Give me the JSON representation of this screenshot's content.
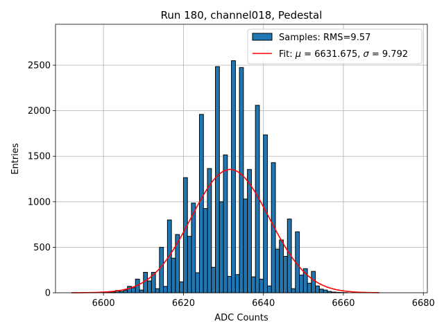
{
  "chart_data": {
    "type": "bar",
    "title": "Run 180, channel018, Pedestal",
    "xlabel": "ADC Counts",
    "ylabel": "Entries",
    "xlim": [
      6588,
      6681
    ],
    "ylim": [
      0,
      2950
    ],
    "grid": true,
    "legend_position": "top-right",
    "x_ticks": [
      6600,
      6620,
      6640,
      6660,
      6680
    ],
    "y_ticks": [
      0,
      500,
      1000,
      1500,
      2000,
      2500
    ],
    "bin_width": 1,
    "bar_color": "#1f77b4",
    "fit_color": "#ff0000",
    "histogram": {
      "name": "Samples: RMS=9.57",
      "bin_left_edges": [
        6600,
        6601,
        6602,
        6603,
        6604,
        6605,
        6606,
        6607,
        6608,
        6609,
        6610,
        6611,
        6612,
        6613,
        6614,
        6615,
        6616,
        6617,
        6618,
        6619,
        6620,
        6621,
        6622,
        6623,
        6624,
        6625,
        6626,
        6627,
        6628,
        6629,
        6630,
        6631,
        6632,
        6633,
        6634,
        6635,
        6636,
        6637,
        6638,
        6639,
        6640,
        6641,
        6642,
        6643,
        6644,
        6645,
        6646,
        6647,
        6648,
        6649,
        6650,
        6651,
        6652,
        6653,
        6654,
        6655,
        6656,
        6657,
        6658,
        6659,
        6660
      ],
      "values": [
        3,
        5,
        10,
        25,
        15,
        30,
        70,
        55,
        150,
        30,
        225,
        130,
        225,
        45,
        500,
        70,
        800,
        380,
        640,
        120,
        1265,
        620,
        985,
        220,
        1960,
        925,
        1365,
        280,
        2485,
        1000,
        1515,
        180,
        2550,
        200,
        2475,
        1030,
        1355,
        175,
        2060,
        150,
        1735,
        75,
        1430,
        480,
        580,
        400,
        810,
        45,
        670,
        195,
        265,
        105,
        235,
        75,
        40,
        30,
        15,
        8,
        5,
        3,
        2
      ]
    },
    "fit": {
      "name": "Fit: μ = 6631.675, σ = 9.792",
      "legend_prefix": "Fit: ",
      "mu_symbol": "μ",
      "mu_value": " = 6631.675, ",
      "sigma_symbol": "σ",
      "sigma_value": " = 9.792",
      "mu": 6631.675,
      "sigma": 9.792,
      "amplitude": 1355,
      "x_range": [
        6592,
        6669
      ]
    }
  }
}
